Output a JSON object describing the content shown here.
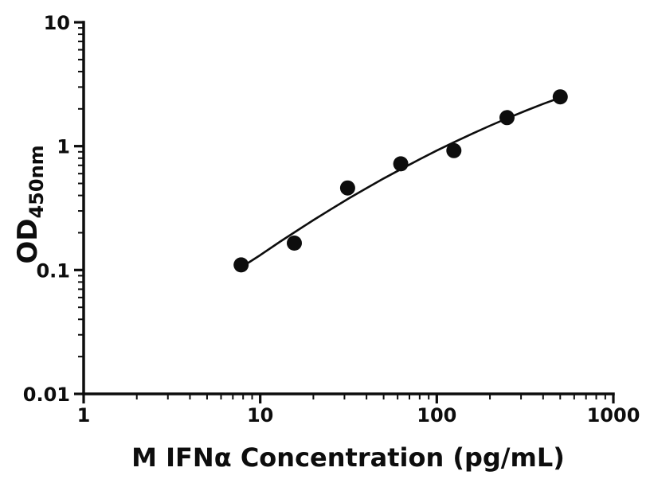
{
  "chart_data": {
    "type": "scatter",
    "title": "",
    "xlabel": "M IFNα Concentration (pg/mL)",
    "ylabel_main": "OD",
    "ylabel_sub": "450nm",
    "x_scale": "log",
    "y_scale": "log",
    "xlim": [
      1,
      1000
    ],
    "ylim": [
      0.01,
      10
    ],
    "grid": false,
    "legend": "none",
    "ink_color": "#0d0d0d",
    "background_color": "#ffffff",
    "x_ticks": [
      {
        "value": 1,
        "label": "1"
      },
      {
        "value": 10,
        "label": "10"
      },
      {
        "value": 100,
        "label": "100"
      },
      {
        "value": 1000,
        "label": "1000"
      }
    ],
    "y_ticks": [
      {
        "value": 0.01,
        "label": "0.01"
      },
      {
        "value": 0.1,
        "label": "0.1"
      },
      {
        "value": 1,
        "label": "1"
      },
      {
        "value": 10,
        "label": "10"
      }
    ],
    "points": {
      "x": [
        7.8,
        15.6,
        31.25,
        62.5,
        125,
        250,
        500
      ],
      "y": [
        0.11,
        0.165,
        0.46,
        0.72,
        0.92,
        1.7,
        2.5
      ]
    },
    "fit_curve": {
      "x": [
        7.8,
        10,
        13,
        16,
        20,
        25,
        32,
        40,
        50,
        63,
        80,
        100,
        125,
        160,
        200,
        250,
        320,
        400,
        500
      ],
      "y": [
        0.105,
        0.132,
        0.17,
        0.206,
        0.253,
        0.308,
        0.381,
        0.458,
        0.548,
        0.655,
        0.784,
        0.921,
        1.075,
        1.267,
        1.462,
        1.675,
        1.935,
        2.191,
        2.465
      ]
    }
  }
}
